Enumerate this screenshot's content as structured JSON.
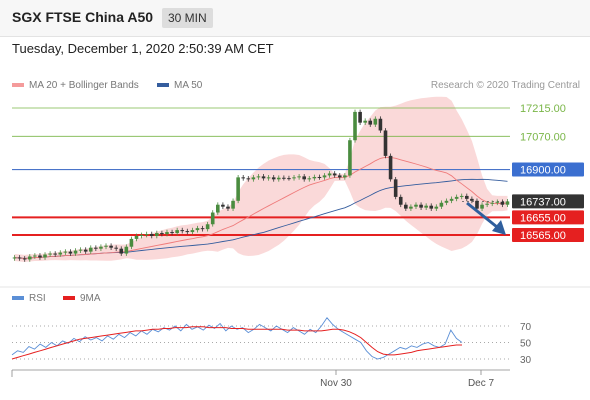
{
  "header": {
    "title": "SGX FTSE China A50",
    "timeframe": "30 MIN"
  },
  "date_line": "Tuesday, December 1, 2020 2:50:39 AM CET",
  "legend": {
    "bb_label": "MA 20 + Bollinger Bands",
    "ma50_label": "MA 50",
    "credit": "Research © 2020 Trading Central"
  },
  "colors": {
    "up": "#4a8c3f",
    "down": "#c0392b",
    "ma20": "#ef7b7b",
    "bands": "#f6b9b9",
    "ma50": "#355d9e",
    "resistance": "#7ab648",
    "pivot": "#4a74c9",
    "support": "#e52020",
    "current": "#333333",
    "arrow": "#2f5f9e"
  },
  "levels": [
    {
      "value": "17215.00",
      "kind": "resistance"
    },
    {
      "value": "17070.00",
      "kind": "resistance"
    },
    {
      "value": "16900.00",
      "kind": "pivot"
    },
    {
      "value": "16737.00",
      "kind": "current"
    },
    {
      "value": "16655.00",
      "kind": "support"
    },
    {
      "value": "16565.00",
      "kind": "support"
    }
  ],
  "rsi": {
    "rsi_label": "RSI",
    "ma_label": "9MA",
    "ticks": [
      "70",
      "50",
      "30"
    ]
  },
  "x_axis": {
    "ticks": [
      "Nov 30",
      "Dec 7"
    ]
  },
  "chart_data": [
    {
      "type": "candlestick",
      "title": "SGX FTSE China A50",
      "ylim": [
        16430,
        17270
      ],
      "x_ticks": [
        "Nov 30",
        "Dec 7"
      ],
      "series": [
        {
          "name": "MA 20 + Bollinger Bands"
        },
        {
          "name": "MA 50"
        }
      ],
      "close": [
        16450,
        16445,
        16440,
        16455,
        16460,
        16450,
        16465,
        16470,
        16465,
        16475,
        16480,
        16470,
        16485,
        16490,
        16480,
        16500,
        16495,
        16505,
        16510,
        16500,
        16495,
        16470,
        16505,
        16545,
        16560,
        16565,
        16570,
        16560,
        16575,
        16570,
        16580,
        16575,
        16590,
        16585,
        16580,
        16590,
        16600,
        16595,
        16620,
        16680,
        16720,
        16710,
        16700,
        16740,
        16860,
        16855,
        16850,
        16860,
        16865,
        16855,
        16860,
        16850,
        16858,
        16856,
        16855,
        16860,
        16865,
        16850,
        16855,
        16862,
        16860,
        16870,
        16880,
        16870,
        16860,
        16870,
        17050,
        17195,
        17140,
        17150,
        17130,
        17160,
        17100,
        16970,
        16850,
        16760,
        16720,
        16700,
        16710,
        16720,
        16705,
        16715,
        16700,
        16710,
        16730,
        16740,
        16750,
        16760,
        16765,
        16750,
        16740,
        16700,
        16720,
        16725,
        16730,
        16735,
        16720,
        16737
      ],
      "levels": [
        17215,
        17070,
        16900,
        16737,
        16655,
        16565
      ]
    },
    {
      "type": "line",
      "title": "",
      "ylim": [
        0,
        100
      ],
      "y_ticks": [
        70,
        50,
        30
      ],
      "series": [
        {
          "name": "RSI",
          "values": [
            35,
            40,
            38,
            45,
            42,
            48,
            44,
            50,
            46,
            52,
            49,
            55,
            51,
            57,
            53,
            56,
            52,
            58,
            54,
            60,
            56,
            62,
            58,
            64,
            60,
            66,
            63,
            68,
            65,
            70,
            64,
            72,
            66,
            69,
            65,
            71,
            67,
            73,
            64,
            70,
            66,
            68,
            62,
            66,
            72,
            68,
            64,
            70,
            66,
            62,
            68,
            64,
            60,
            66,
            62,
            70,
            80,
            72,
            66,
            62,
            58,
            54,
            50,
            40,
            33,
            30,
            32,
            36,
            40,
            44,
            42,
            46,
            44,
            48,
            50,
            46,
            44,
            48,
            65,
            55,
            50
          ]
        },
        {
          "name": "9MA",
          "values": [
            30,
            32,
            34,
            36,
            38,
            40,
            42,
            44,
            46,
            48,
            50,
            52,
            54,
            55,
            56,
            57,
            58,
            59,
            60,
            61,
            62,
            63,
            64,
            64,
            65,
            66,
            66,
            67,
            67,
            68,
            68,
            68,
            69,
            69,
            69,
            68,
            68,
            68,
            68,
            67,
            67,
            67,
            66,
            66,
            66,
            66,
            66,
            66,
            66,
            65,
            65,
            65,
            64,
            64,
            64,
            64,
            65,
            66,
            66,
            65,
            63,
            60,
            56,
            50,
            44,
            39,
            36,
            35,
            35,
            36,
            37,
            38,
            40,
            41,
            42,
            43,
            44,
            45,
            46,
            47,
            47
          ]
        }
      ]
    }
  ]
}
